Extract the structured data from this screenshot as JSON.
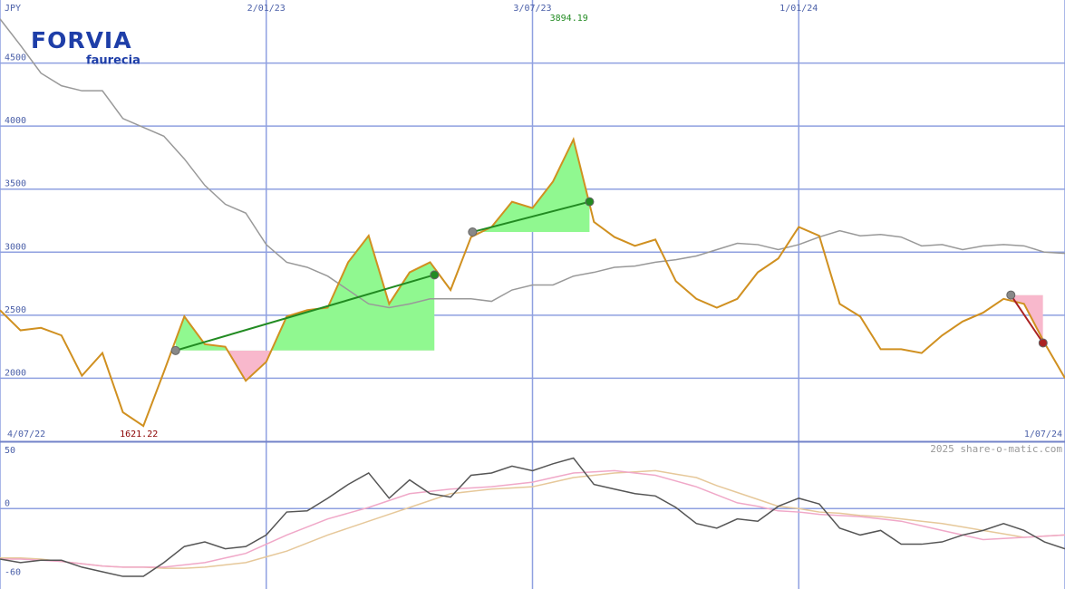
{
  "logo": {
    "name": "FORVIA",
    "sub": "faurecia"
  },
  "watermark": "2025 share-o-matic.com",
  "chart_data": [
    {
      "type": "line",
      "y_label": "JPY",
      "x": [
        "2022-07-04",
        "2022-07-18",
        "2022-08-01",
        "2022-08-15",
        "2022-08-29",
        "2022-09-12",
        "2022-09-26",
        "2022-10-10",
        "2022-10-24",
        "2022-11-07",
        "2022-11-21",
        "2022-12-05",
        "2022-12-19",
        "2023-01-02",
        "2023-01-16",
        "2023-01-30",
        "2023-02-13",
        "2023-02-27",
        "2023-03-13",
        "2023-03-27",
        "2023-04-10",
        "2023-04-24",
        "2023-05-08",
        "2023-05-22",
        "2023-06-05",
        "2023-06-19",
        "2023-07-03",
        "2023-07-17",
        "2023-07-31",
        "2023-08-14",
        "2023-08-28",
        "2023-09-11",
        "2023-09-25",
        "2023-10-09",
        "2023-10-23",
        "2023-11-06",
        "2023-11-20",
        "2023-12-04",
        "2023-12-18",
        "2024-01-01",
        "2024-01-15",
        "2024-01-29",
        "2024-02-12",
        "2024-02-26",
        "2024-03-11",
        "2024-03-25",
        "2024-04-08",
        "2024-04-22",
        "2024-05-06",
        "2024-05-20",
        "2024-06-03",
        "2024-06-17",
        "2024-07-01"
      ],
      "xlim": [
        "2022-07-04",
        "2024-07-01"
      ],
      "xticks": [
        {
          "value": "2022-07-04",
          "label": "4/07/22"
        },
        {
          "value": "2023-01-02",
          "label": "2/01/23"
        },
        {
          "value": "2023-07-03",
          "label": "3/07/23"
        },
        {
          "value": "2024-01-01",
          "label": "1/01/24"
        },
        {
          "value": "2024-07-01",
          "label": "1/07/24"
        }
      ],
      "ylim": [
        1500,
        5000
      ],
      "yticks": [
        2000,
        2500,
        3000,
        3500,
        4000,
        4500
      ],
      "grid": true,
      "series": [
        {
          "color": "#999999",
          "values": [
            4850,
            4640,
            4420,
            4320,
            4280,
            4280,
            4060,
            3990,
            3920,
            3740,
            3530,
            3380,
            3310,
            3060,
            2920,
            2880,
            2810,
            2700,
            2590,
            2560,
            2590,
            2630,
            2630,
            2630,
            2610,
            2700,
            2740,
            2740,
            2810,
            2840,
            2880,
            2890,
            2920,
            2940,
            2970,
            3020,
            3070,
            3060,
            3020,
            3060,
            3120,
            3170,
            3130,
            3140,
            3120,
            3050,
            3060,
            3020,
            3050,
            3060,
            3050,
            3000,
            2990
          ]
        },
        {
          "color": "#d09020",
          "values": [
            2540,
            2380,
            2400,
            2340,
            2020,
            2200,
            1730,
            1621.22,
            2050,
            2490,
            2270,
            2250,
            1980,
            2130,
            2490,
            2540,
            2560,
            2920,
            3130,
            2590,
            2840,
            2920,
            2700,
            3120,
            3200,
            3400,
            3350,
            3560,
            3894.19,
            3240,
            3120,
            3050,
            3100,
            2770,
            2630,
            2560,
            2630,
            2840,
            2950,
            3200,
            3130,
            2590,
            2490,
            2230,
            2230,
            2200,
            2340,
            2450,
            2520,
            2630,
            2590,
            2280,
            2000
          ]
        }
      ],
      "max_label_color": "#228b22",
      "min_label_color": "#8b0000",
      "gain_fill": "#90f890",
      "loss_fill": "#f8b8cc",
      "signals": [
        {
          "start": "2022-11-01",
          "start_value": 2220,
          "end": "2023-04-27",
          "end_value": 2820,
          "color": "#228b22"
        },
        {
          "start": "2023-05-23",
          "start_value": 3160,
          "end": "2023-08-11",
          "end_value": 3400,
          "color": "#228b22"
        },
        {
          "start": "2024-05-25",
          "start_value": 2660,
          "end": "2024-06-16",
          "end_value": 2280,
          "color": "#aa2222"
        }
      ]
    },
    {
      "type": "line",
      "x": [
        "2022-07-04",
        "2022-07-18",
        "2022-08-01",
        "2022-08-15",
        "2022-08-29",
        "2022-09-12",
        "2022-09-26",
        "2022-10-10",
        "2022-10-24",
        "2022-11-07",
        "2022-11-21",
        "2022-12-05",
        "2022-12-19",
        "2023-01-02",
        "2023-01-16",
        "2023-01-30",
        "2023-02-13",
        "2023-02-27",
        "2023-03-13",
        "2023-03-27",
        "2023-04-10",
        "2023-04-24",
        "2023-05-08",
        "2023-05-22",
        "2023-06-05",
        "2023-06-19",
        "2023-07-03",
        "2023-07-17",
        "2023-07-31",
        "2023-08-14",
        "2023-08-28",
        "2023-09-11",
        "2023-09-25",
        "2023-10-09",
        "2023-10-23",
        "2023-11-06",
        "2023-11-20",
        "2023-12-04",
        "2023-12-18",
        "2024-01-01",
        "2024-01-15",
        "2024-01-29",
        "2024-02-12",
        "2024-02-26",
        "2024-03-11",
        "2024-03-25",
        "2024-04-08",
        "2024-04-22",
        "2024-05-06",
        "2024-05-20",
        "2024-06-03",
        "2024-06-17",
        "2024-07-01"
      ],
      "xlim": [
        "2022-07-04",
        "2024-07-01"
      ],
      "ylim": [
        -70,
        57
      ],
      "yticks": [
        50,
        0,
        -60
      ],
      "zero_line": true,
      "series": [
        {
          "color": "#e6c89a",
          "values": [
            -43,
            -43,
            -44,
            -46,
            -48,
            -50,
            -51,
            -51,
            -52,
            -52,
            -51,
            -49,
            -47,
            -42,
            -37,
            -30,
            -23,
            -17,
            -11,
            -5,
            1,
            7,
            13,
            15,
            17,
            18,
            19,
            23,
            27,
            29,
            31,
            32,
            33,
            30,
            27,
            20,
            14,
            8,
            2,
            0,
            -3,
            -4,
            -6,
            -7,
            -9,
            -11,
            -13,
            -16,
            -19,
            -22,
            -25,
            -24,
            -23
          ]
        },
        {
          "color": "#f0a8c8",
          "values": [
            -44,
            -44,
            -45,
            -46,
            -48,
            -50,
            -51,
            -51,
            -51,
            -49,
            -47,
            -43,
            -39,
            -31,
            -23,
            -16,
            -9,
            -4,
            1,
            7,
            13,
            15,
            17,
            18,
            19,
            21,
            23,
            27,
            31,
            32,
            33,
            31,
            29,
            24,
            19,
            12,
            5,
            2,
            -2,
            -3,
            -5,
            -6,
            -7,
            -9,
            -11,
            -15,
            -19,
            -23,
            -27,
            -26,
            -25,
            -24,
            -23
          ]
        },
        {
          "color": "#555555",
          "values": [
            -44,
            -47,
            -45,
            -45,
            -51,
            -55,
            -59,
            -59,
            -47,
            -33,
            -29,
            -35,
            -33,
            -23,
            -3,
            -2,
            9,
            21,
            31,
            9,
            25,
            13,
            10,
            29,
            31,
            37,
            33,
            39,
            44,
            21,
            17,
            13,
            11,
            1,
            -13,
            -17,
            -9,
            -11,
            2,
            9,
            4,
            -17,
            -23,
            -19,
            -31,
            -31,
            -29,
            -23,
            -19,
            -13,
            -19,
            -29,
            -35
          ]
        }
      ]
    }
  ]
}
